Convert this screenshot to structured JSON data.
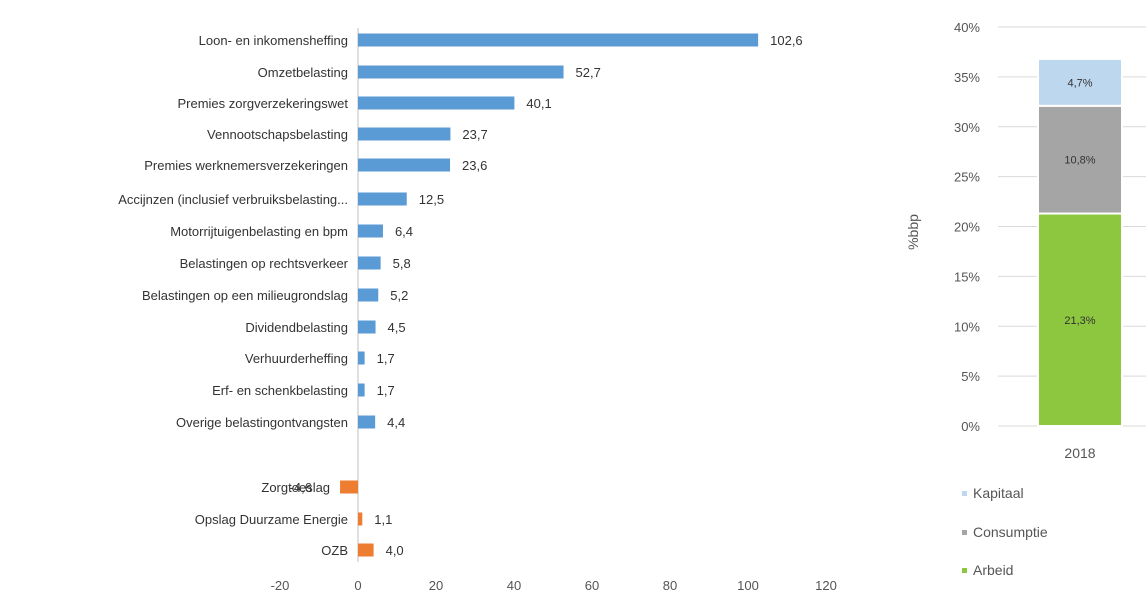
{
  "chart_data": [
    {
      "type": "bar",
      "orientation": "horizontal",
      "categories": [
        "Loon- en inkomensheffing",
        "Omzetbelasting",
        "Premies zorgverzekeringswet",
        "Vennootschapsbelasting",
        "Premies werknemersverzekeringen",
        "Accijnzen (inclusief verbruiksbelasting...",
        "Motorrijtuigenbelasting en bpm",
        "Belastingen op rechtsverkeer",
        "Belastingen op een milieugrondslag",
        "Dividendbelasting",
        "Verhuurderheffing",
        "Erf- en schenkbelasting",
        "Overige belastingontvangsten",
        "Zorgtoeslag",
        "Opslag Duurzame Energie",
        "OZB"
      ],
      "values": [
        102.6,
        52.7,
        40.1,
        23.7,
        23.6,
        12.5,
        6.4,
        5.8,
        5.2,
        4.5,
        1.7,
        1.7,
        4.4,
        -4.6,
        1.1,
        4.0
      ],
      "data_labels": [
        "102,6",
        "52,7",
        "40,1",
        "23,7",
        "23,6",
        "12,5",
        "6,4",
        "5,8",
        "5,2",
        "4,5",
        "1,7",
        "1,7",
        "4,4",
        "-4,6",
        "1,1",
        "4,0"
      ],
      "groups": [
        {
          "color": "#5b9bd5",
          "from": 0,
          "to": 12
        },
        {
          "color": "#ed7d31",
          "from": 13,
          "to": 15
        }
      ],
      "xlim": [
        -20,
        120
      ],
      "xticks": [
        -20,
        0,
        20,
        40,
        60,
        80,
        100,
        120
      ],
      "xtick_labels": [
        "-20",
        "0",
        "20",
        "40",
        "60",
        "80",
        "100",
        "120"
      ],
      "title": "",
      "xlabel": "",
      "ylabel": "",
      "grid": false
    },
    {
      "type": "bar",
      "stacked": true,
      "categories": [
        "2018"
      ],
      "series": [
        {
          "name": "Arbeid",
          "values": [
            21.3
          ],
          "label": "21,3%",
          "color": "#8dc63f"
        },
        {
          "name": "Consumptie",
          "values": [
            10.8
          ],
          "label": "10,8%",
          "color": "#a5a5a5"
        },
        {
          "name": "Kapitaal",
          "values": [
            4.7
          ],
          "label": "4,7%",
          "color": "#bdd7ee"
        }
      ],
      "ylim": [
        0,
        40
      ],
      "yticks": [
        0,
        5,
        10,
        15,
        20,
        25,
        30,
        35,
        40
      ],
      "ytick_labels": [
        "0%",
        "5%",
        "10%",
        "15%",
        "20%",
        "25%",
        "30%",
        "35%",
        "40%"
      ],
      "ylabel": "%bbp",
      "xlabel": "",
      "title": "",
      "grid": true,
      "legend_position": "bottom",
      "legend_order": [
        "Kapitaal",
        "Consumptie",
        "Arbeid"
      ]
    }
  ]
}
